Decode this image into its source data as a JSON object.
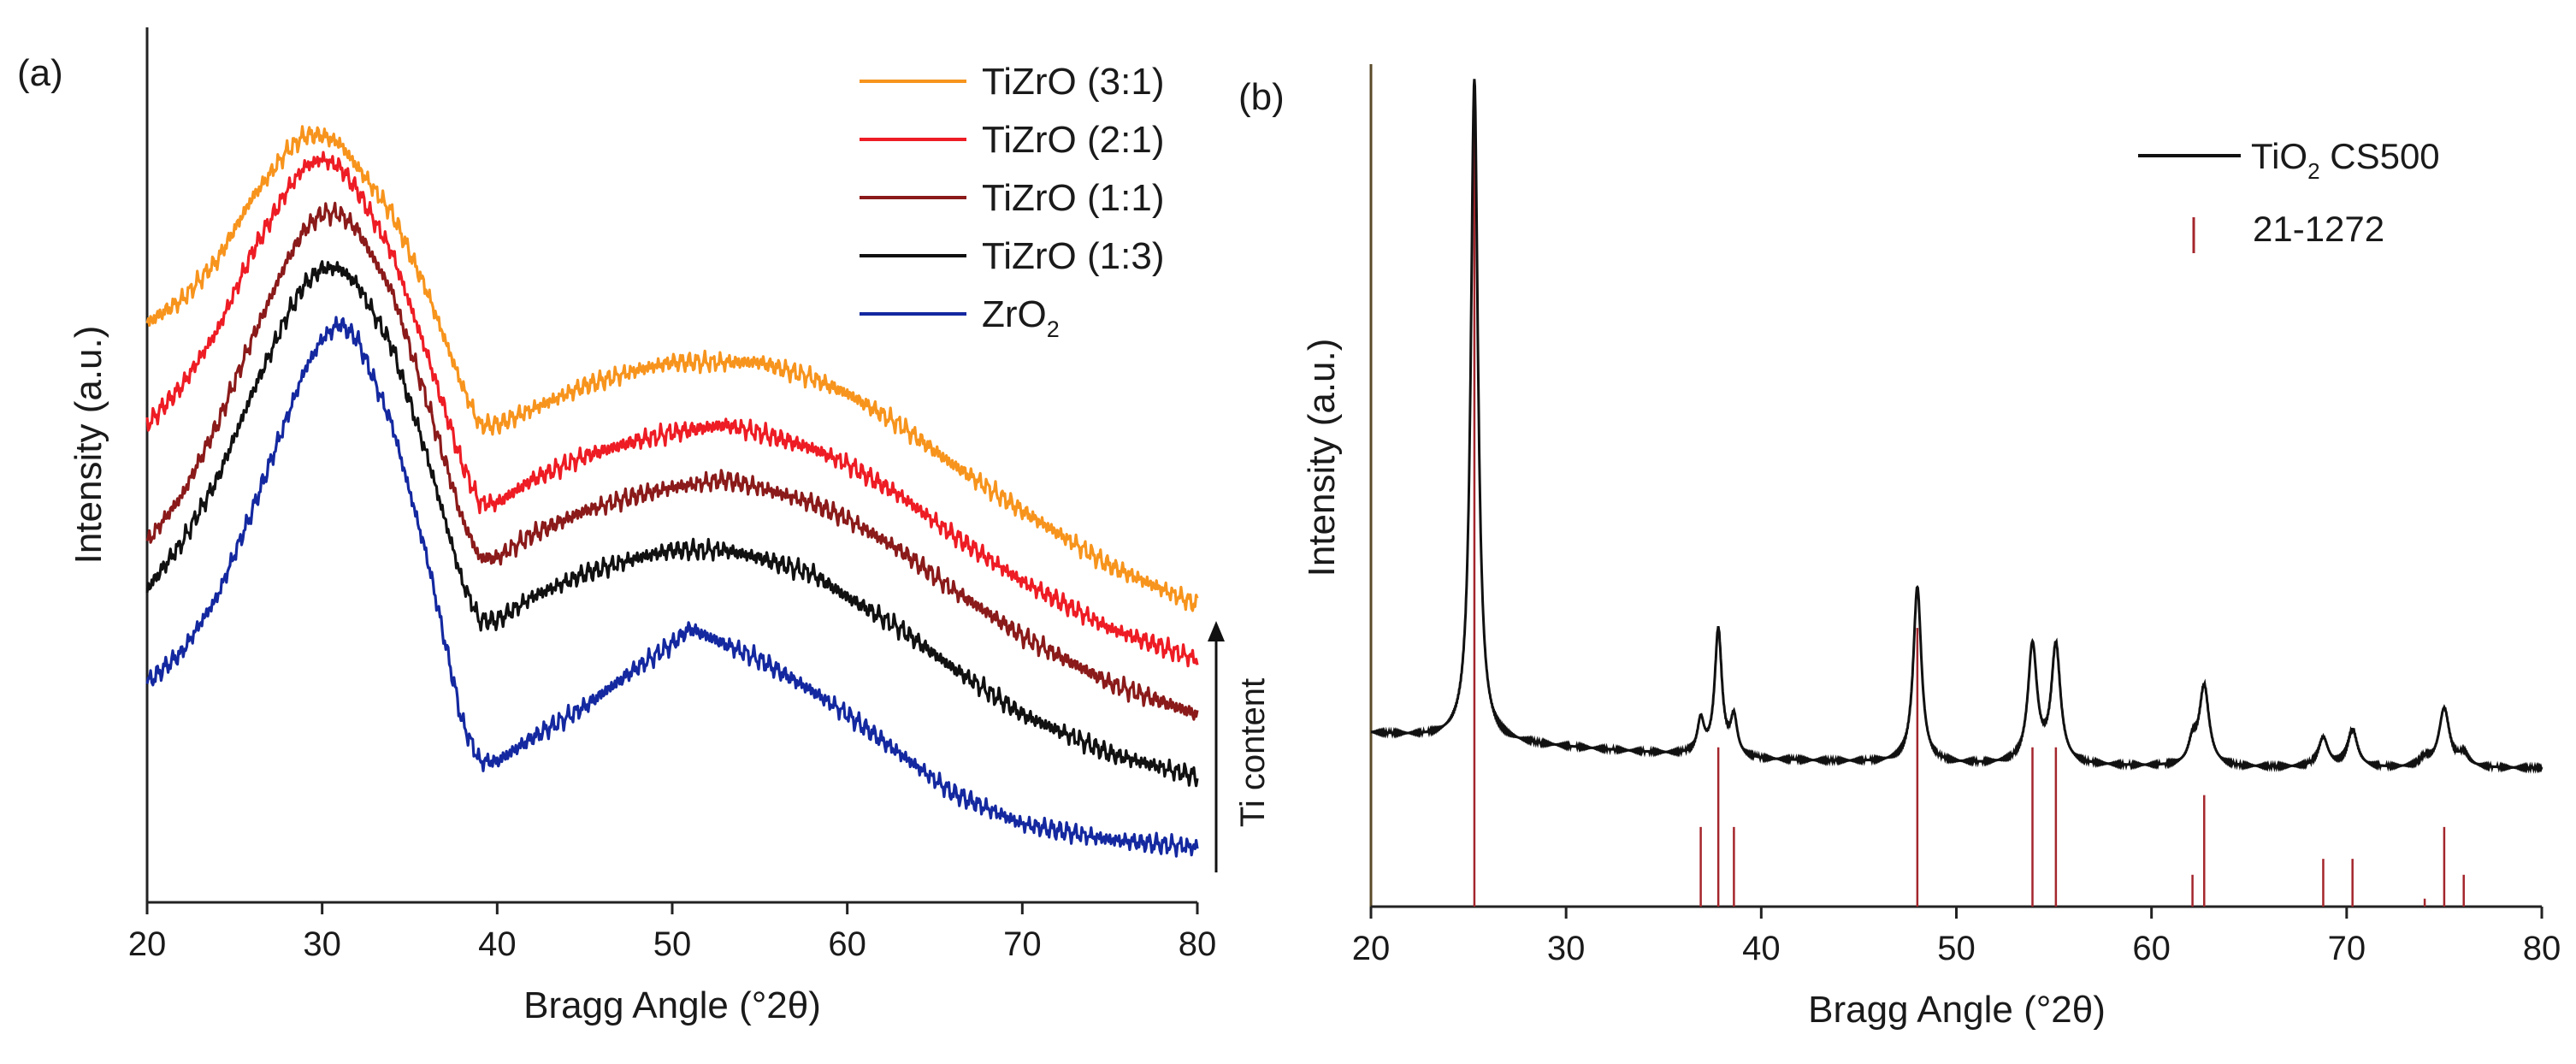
{
  "chart_data": [
    {
      "panel_label": "(a)",
      "type": "line",
      "xlabel": "Bragg Angle (°2θ)",
      "ylabel": "Intensity (a.u.)",
      "xlim": [
        20,
        80
      ],
      "ylim": [
        0,
        1
      ],
      "xticks": [
        "20",
        "30",
        "40",
        "50",
        "60",
        "70",
        "80"
      ],
      "arrow_label": "Ti content",
      "legend_position": "top-right",
      "series": [
        {
          "name": "TiZrO (3:1)",
          "name_main": "TiZrO (3:1)",
          "name_sub": "",
          "color": "#f7941d",
          "x": [
            20,
            22,
            24,
            26,
            28,
            29,
            30,
            31,
            32,
            34,
            36,
            38,
            39,
            40,
            42,
            45,
            48,
            50,
            53,
            55,
            58,
            60,
            63,
            66,
            70,
            75,
            80
          ],
          "y": [
            0.68,
            0.71,
            0.76,
            0.84,
            0.9,
            0.92,
            0.92,
            0.91,
            0.88,
            0.82,
            0.72,
            0.6,
            0.55,
            0.55,
            0.57,
            0.6,
            0.62,
            0.63,
            0.63,
            0.63,
            0.61,
            0.59,
            0.55,
            0.5,
            0.44,
            0.37,
            0.32
          ]
        },
        {
          "name": "TiZrO (2:1)",
          "name_main": "TiZrO (2:1)",
          "name_sub": "",
          "color": "#ee1c24",
          "x": [
            20,
            22,
            24,
            26,
            28,
            29,
            30,
            31,
            32,
            34,
            36,
            38,
            39,
            40,
            42,
            45,
            48,
            50,
            53,
            55,
            58,
            60,
            63,
            66,
            70,
            75,
            80
          ],
          "y": [
            0.55,
            0.6,
            0.67,
            0.77,
            0.85,
            0.88,
            0.89,
            0.88,
            0.85,
            0.77,
            0.64,
            0.5,
            0.45,
            0.45,
            0.48,
            0.51,
            0.53,
            0.54,
            0.55,
            0.54,
            0.52,
            0.5,
            0.46,
            0.41,
            0.35,
            0.29,
            0.25
          ]
        },
        {
          "name": "TiZrO (1:1)",
          "name_main": "TiZrO (1:1)",
          "name_sub": "",
          "color": "#8b1a1a",
          "x": [
            20,
            22,
            24,
            26,
            28,
            29,
            30,
            31,
            32,
            34,
            36,
            38,
            39,
            40,
            42,
            45,
            48,
            50,
            53,
            55,
            58,
            60,
            63,
            66,
            70,
            75,
            80
          ],
          "y": [
            0.4,
            0.46,
            0.55,
            0.66,
            0.76,
            0.8,
            0.82,
            0.82,
            0.8,
            0.72,
            0.58,
            0.43,
            0.38,
            0.38,
            0.41,
            0.44,
            0.46,
            0.47,
            0.48,
            0.47,
            0.45,
            0.43,
            0.39,
            0.34,
            0.28,
            0.22,
            0.18
          ]
        },
        {
          "name": "TiZrO (1:3)",
          "name_main": "TiZrO (1:3)",
          "name_sub": "",
          "color": "#111111",
          "x": [
            20,
            22,
            24,
            26,
            28,
            29,
            30,
            31,
            32,
            34,
            36,
            38,
            39,
            40,
            42,
            45,
            48,
            50,
            53,
            55,
            58,
            60,
            63,
            66,
            70,
            75,
            80
          ],
          "y": [
            0.34,
            0.4,
            0.48,
            0.59,
            0.69,
            0.73,
            0.75,
            0.75,
            0.73,
            0.65,
            0.51,
            0.35,
            0.3,
            0.3,
            0.33,
            0.36,
            0.38,
            0.39,
            0.39,
            0.38,
            0.36,
            0.33,
            0.29,
            0.24,
            0.18,
            0.13,
            0.1
          ]
        },
        {
          "name": "ZrO2",
          "name_main": "ZrO",
          "name_sub": "2",
          "color": "#1428a0",
          "x": [
            20,
            22,
            24,
            26,
            28,
            29,
            30,
            31,
            32,
            34,
            36,
            38,
            39,
            40,
            42,
            45,
            48,
            50,
            51,
            53,
            55,
            58,
            60,
            63,
            66,
            70,
            75,
            80
          ],
          "y": [
            0.22,
            0.26,
            0.33,
            0.44,
            0.56,
            0.62,
            0.66,
            0.68,
            0.66,
            0.55,
            0.38,
            0.17,
            0.12,
            0.12,
            0.15,
            0.19,
            0.24,
            0.27,
            0.29,
            0.27,
            0.25,
            0.21,
            0.18,
            0.13,
            0.08,
            0.04,
            0.02,
            0.01
          ]
        }
      ]
    },
    {
      "panel_label": "(b)",
      "type": "line",
      "xlabel": "Bragg Angle (°2θ)",
      "ylabel": "Intensity (a.u.)",
      "xlim": [
        20,
        80
      ],
      "ylim": [
        0,
        1
      ],
      "xticks": [
        "20",
        "30",
        "40",
        "50",
        "60",
        "70",
        "80"
      ],
      "legend_position": "top-right",
      "series": [
        {
          "name": "TiO2 CS500",
          "name_main": "TiO",
          "name_sub": "2",
          "name_rest": " CS500",
          "color": "#111111",
          "baseline": [
            [
              20,
              0.207
            ],
            [
              30,
              0.19
            ],
            [
              40,
              0.175
            ],
            [
              50,
              0.17
            ],
            [
              60,
              0.167
            ],
            [
              70,
              0.165
            ],
            [
              80,
              0.165
            ]
          ],
          "peaks": [
            {
              "pos": 25.3,
              "height": 0.79,
              "width": 0.22
            },
            {
              "pos": 36.9,
              "height": 0.04,
              "width": 0.2
            },
            {
              "pos": 37.8,
              "height": 0.15,
              "width": 0.22
            },
            {
              "pos": 38.6,
              "height": 0.045,
              "width": 0.2
            },
            {
              "pos": 48.0,
              "height": 0.21,
              "width": 0.25
            },
            {
              "pos": 53.9,
              "height": 0.14,
              "width": 0.28
            },
            {
              "pos": 55.1,
              "height": 0.14,
              "width": 0.28
            },
            {
              "pos": 62.1,
              "height": 0.025,
              "width": 0.25
            },
            {
              "pos": 62.7,
              "height": 0.095,
              "width": 0.3
            },
            {
              "pos": 68.8,
              "height": 0.035,
              "width": 0.3
            },
            {
              "pos": 70.3,
              "height": 0.045,
              "width": 0.3
            },
            {
              "pos": 74.0,
              "height": 0.01,
              "width": 0.3
            },
            {
              "pos": 75.0,
              "height": 0.07,
              "width": 0.32
            },
            {
              "pos": 76.0,
              "height": 0.015,
              "width": 0.3
            }
          ]
        },
        {
          "name": "21-1272",
          "type": "reference_sticks",
          "color": "#a4262c",
          "x": [
            25.3,
            36.9,
            37.8,
            38.6,
            48.0,
            53.9,
            55.1,
            62.1,
            62.7,
            68.8,
            70.3,
            74.0,
            75.0,
            76.0
          ],
          "y": [
            1.0,
            0.1,
            0.2,
            0.1,
            0.35,
            0.2,
            0.2,
            0.04,
            0.14,
            0.06,
            0.06,
            0.01,
            0.1,
            0.04
          ]
        }
      ]
    }
  ]
}
